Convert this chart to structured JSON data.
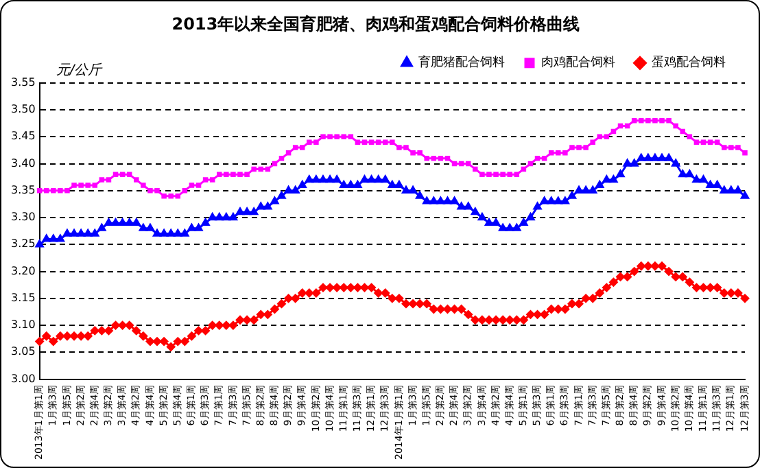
{
  "chart_data": {
    "type": "line",
    "title": "2013年以来全国育肥猪、肉鸡和蛋鸡配合饲料价格曲线",
    "ylabel": "元/公斤",
    "categories": [
      "2013年1月第1周",
      null,
      "1月第3周",
      null,
      "1月第5周",
      null,
      "2月第2周",
      null,
      "2月第4周",
      null,
      "3月第2周",
      null,
      "3月第4周",
      null,
      "4月第2周",
      null,
      "4月第4周",
      null,
      "5月第2周",
      null,
      "5月第4周",
      null,
      "6月第1周",
      null,
      "6月第3周",
      null,
      "7月第1周",
      null,
      "7月第3周",
      null,
      "7月第5周",
      null,
      "8月第2周",
      null,
      "8月第4周",
      null,
      "9月第2周",
      null,
      "9月第4周",
      null,
      "10月第2周",
      null,
      "10月第4周",
      null,
      "11月第1周",
      null,
      "11月第3周",
      null,
      "12月第1周",
      null,
      "12月第3周",
      null,
      "2014年1月第1周",
      null,
      "1月第3周",
      null,
      "1月第5周",
      null,
      "2月第2周",
      null,
      "2月第4周",
      null,
      "3月第2周",
      null,
      "3月第4周",
      null,
      "4月第2周",
      null,
      "4月第4周",
      null,
      "5月第1周",
      null,
      "5月第3周",
      null,
      "6月第1周",
      null,
      "6月第3周",
      null,
      "7月第1周",
      null,
      "7月第3周",
      null,
      "7月第5周",
      null,
      "8月第2周",
      null,
      "8月第4周",
      null,
      "9月第2周",
      null,
      "9月第4周",
      null,
      "10月第2周",
      null,
      "10月第4周",
      null,
      "11月第1周",
      null,
      "11月第3周",
      null,
      "12月第1周",
      null,
      "12月第3周"
    ],
    "series": [
      {
        "name": "育肥猪配合饲料",
        "color": "#0000ff",
        "marker": "triangle",
        "values": [
          3.25,
          3.26,
          3.26,
          3.26,
          3.27,
          3.27,
          3.27,
          3.27,
          3.27,
          3.28,
          3.29,
          3.29,
          3.29,
          3.29,
          3.29,
          3.28,
          3.28,
          3.27,
          3.27,
          3.27,
          3.27,
          3.27,
          3.28,
          3.28,
          3.29,
          3.3,
          3.3,
          3.3,
          3.3,
          3.31,
          3.31,
          3.31,
          3.32,
          3.32,
          3.33,
          3.34,
          3.35,
          3.35,
          3.36,
          3.37,
          3.37,
          3.37,
          3.37,
          3.37,
          3.36,
          3.36,
          3.36,
          3.37,
          3.37,
          3.37,
          3.37,
          3.36,
          3.36,
          3.35,
          3.35,
          3.34,
          3.33,
          3.33,
          3.33,
          3.33,
          3.33,
          3.32,
          3.32,
          3.31,
          3.3,
          3.29,
          3.29,
          3.28,
          3.28,
          3.28,
          3.29,
          3.3,
          3.32,
          3.33,
          3.33,
          3.33,
          3.33,
          3.34,
          3.35,
          3.35,
          3.35,
          3.36,
          3.37,
          3.37,
          3.38,
          3.4,
          3.4,
          3.41,
          3.41,
          3.41,
          3.41,
          3.41,
          3.4,
          3.38,
          3.38,
          3.37,
          3.37,
          3.36,
          3.36,
          3.35,
          3.35,
          3.35,
          3.34
        ]
      },
      {
        "name": "肉鸡配合饲料",
        "color": "#ff00ff",
        "marker": "square",
        "values": [
          3.35,
          3.35,
          3.35,
          3.35,
          3.35,
          3.36,
          3.36,
          3.36,
          3.36,
          3.37,
          3.37,
          3.38,
          3.38,
          3.38,
          3.37,
          3.36,
          3.35,
          3.35,
          3.34,
          3.34,
          3.34,
          3.35,
          3.36,
          3.36,
          3.37,
          3.37,
          3.38,
          3.38,
          3.38,
          3.38,
          3.38,
          3.39,
          3.39,
          3.39,
          3.4,
          3.41,
          3.42,
          3.43,
          3.43,
          3.44,
          3.44,
          3.45,
          3.45,
          3.45,
          3.45,
          3.45,
          3.44,
          3.44,
          3.44,
          3.44,
          3.44,
          3.44,
          3.43,
          3.43,
          3.42,
          3.42,
          3.41,
          3.41,
          3.41,
          3.41,
          3.4,
          3.4,
          3.4,
          3.39,
          3.38,
          3.38,
          3.38,
          3.38,
          3.38,
          3.38,
          3.39,
          3.4,
          3.41,
          3.41,
          3.42,
          3.42,
          3.42,
          3.43,
          3.43,
          3.43,
          3.44,
          3.45,
          3.45,
          3.46,
          3.47,
          3.47,
          3.48,
          3.48,
          3.48,
          3.48,
          3.48,
          3.48,
          3.47,
          3.46,
          3.45,
          3.44,
          3.44,
          3.44,
          3.44,
          3.43,
          3.43,
          3.43,
          3.42
        ]
      },
      {
        "name": "蛋鸡配合饲料",
        "color": "#ff0000",
        "marker": "diamond",
        "values": [
          3.07,
          3.08,
          3.07,
          3.08,
          3.08,
          3.08,
          3.08,
          3.08,
          3.09,
          3.09,
          3.09,
          3.1,
          3.1,
          3.1,
          3.09,
          3.08,
          3.07,
          3.07,
          3.07,
          3.06,
          3.07,
          3.07,
          3.08,
          3.09,
          3.09,
          3.1,
          3.1,
          3.1,
          3.1,
          3.11,
          3.11,
          3.11,
          3.12,
          3.12,
          3.13,
          3.14,
          3.15,
          3.15,
          3.16,
          3.16,
          3.16,
          3.17,
          3.17,
          3.17,
          3.17,
          3.17,
          3.17,
          3.17,
          3.17,
          3.16,
          3.16,
          3.15,
          3.15,
          3.14,
          3.14,
          3.14,
          3.14,
          3.13,
          3.13,
          3.13,
          3.13,
          3.13,
          3.12,
          3.11,
          3.11,
          3.11,
          3.11,
          3.11,
          3.11,
          3.11,
          3.11,
          3.12,
          3.12,
          3.12,
          3.13,
          3.13,
          3.13,
          3.14,
          3.14,
          3.15,
          3.15,
          3.16,
          3.17,
          3.18,
          3.19,
          3.19,
          3.2,
          3.21,
          3.21,
          3.21,
          3.21,
          3.2,
          3.19,
          3.19,
          3.18,
          3.17,
          3.17,
          3.17,
          3.17,
          3.16,
          3.16,
          3.16,
          3.15
        ]
      }
    ],
    "ylim": [
      3.0,
      3.55
    ],
    "yticks": [
      {
        "value": 3.0,
        "label": "3.00"
      },
      3.05,
      {
        "value": 3.1,
        "label": "3.10"
      },
      3.15,
      {
        "value": 3.2,
        "label": "3.20"
      },
      3.25,
      {
        "value": 3.3,
        "label": "3.30"
      },
      3.35,
      {
        "value": 3.4,
        "label": "3.40"
      },
      3.45,
      {
        "value": 3.5,
        "label": "3.50"
      },
      3.55
    ],
    "grid": "y",
    "legend": "top right",
    "line_style": "solid"
  }
}
